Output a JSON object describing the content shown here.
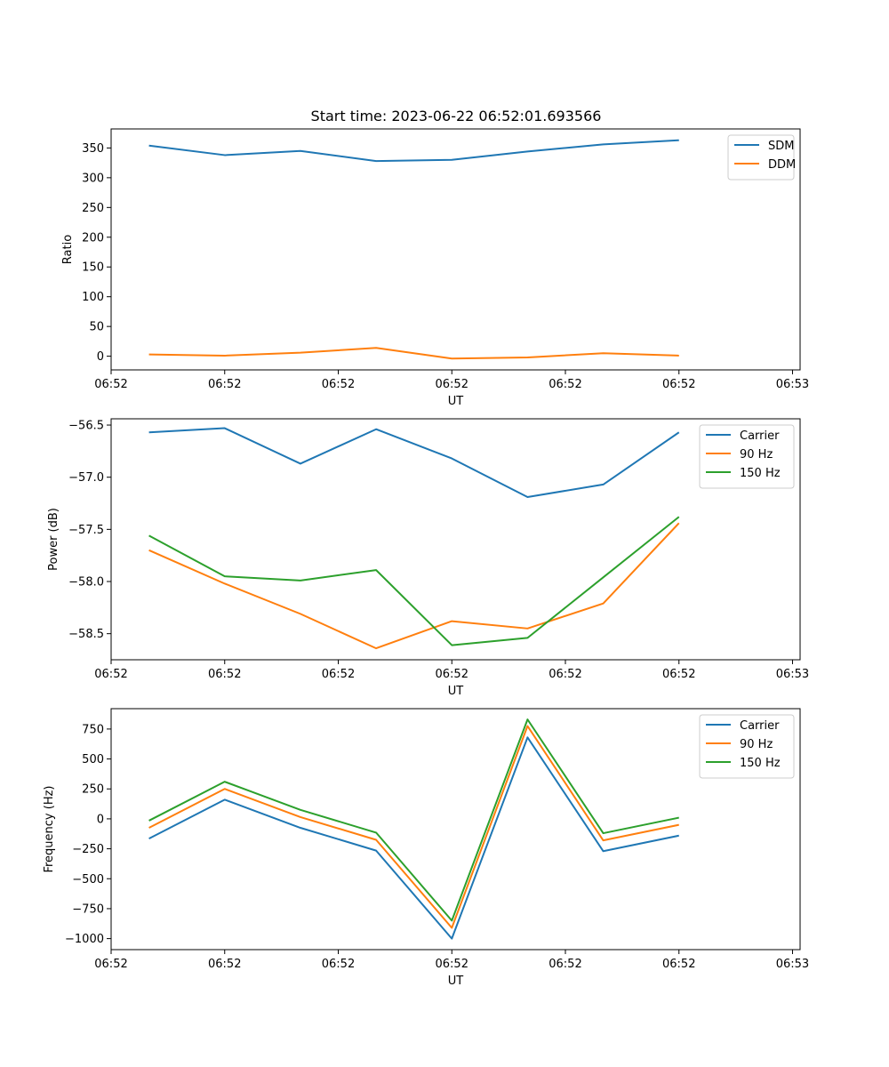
{
  "figure_title": "Start time: 2023-06-22 06:52:01.693566",
  "colors": {
    "blue": "#1f77b4",
    "orange": "#ff7f0e",
    "green": "#2ca02c"
  },
  "chart_data": [
    {
      "type": "line",
      "title": "Start time: 2023-06-22 06:52:01.693566",
      "xlabel": "UT",
      "ylabel": "Ratio",
      "xlim": [
        -0.5,
        8.6
      ],
      "ylim": [
        -23,
        382
      ],
      "xtick_positions": [
        -0.5,
        1,
        2.5,
        4,
        5.5,
        7,
        8.5
      ],
      "xtick_labels": [
        "06:52",
        "06:52",
        "06:52",
        "06:52",
        "06:52",
        "06:52",
        "06:53"
      ],
      "yticks": [
        0,
        50,
        100,
        150,
        200,
        250,
        300,
        350
      ],
      "ytick_labels": [
        "0",
        "50",
        "100",
        "150",
        "200",
        "250",
        "300",
        "350"
      ],
      "legend": "upper right",
      "x": [
        0,
        1,
        2,
        3,
        4,
        5,
        6,
        7
      ],
      "series": [
        {
          "name": "SDM",
          "color": "#1f77b4",
          "values": [
            354,
            338,
            345,
            328,
            330,
            344,
            356,
            363
          ]
        },
        {
          "name": "DDM",
          "color": "#ff7f0e",
          "values": [
            3,
            1,
            6,
            14,
            -4,
            -2,
            5,
            1
          ]
        }
      ]
    },
    {
      "type": "line",
      "xlabel": "UT",
      "ylabel": "Power (dB)",
      "xlim": [
        -0.5,
        8.6
      ],
      "ylim": [
        -58.75,
        -56.44
      ],
      "xtick_positions": [
        -0.5,
        1,
        2.5,
        4,
        5.5,
        7,
        8.5
      ],
      "xtick_labels": [
        "06:52",
        "06:52",
        "06:52",
        "06:52",
        "06:52",
        "06:52",
        "06:53"
      ],
      "yticks": [
        -58.5,
        -58.0,
        -57.5,
        -57.0,
        -56.5
      ],
      "ytick_labels": [
        "−58.5",
        "−58.0",
        "−57.5",
        "−57.0",
        "−56.5"
      ],
      "legend": "upper right",
      "x": [
        0,
        1,
        2,
        3,
        4,
        5,
        6,
        7
      ],
      "series": [
        {
          "name": "Carrier",
          "color": "#1f77b4",
          "values": [
            -56.57,
            -56.53,
            -56.87,
            -56.54,
            -56.82,
            -57.19,
            -57.07,
            -56.57
          ]
        },
        {
          "name": "90 Hz",
          "color": "#ff7f0e",
          "values": [
            -57.7,
            -58.02,
            -58.31,
            -58.64,
            -58.38,
            -58.45,
            -58.21,
            -57.44
          ]
        },
        {
          "name": "150 Hz",
          "color": "#2ca02c",
          "values": [
            -57.56,
            -57.95,
            -57.99,
            -57.89,
            -58.61,
            -58.54,
            -57.96,
            -57.38
          ]
        }
      ]
    },
    {
      "type": "line",
      "xlabel": "UT",
      "ylabel": "Frequency (Hz)",
      "xlim": [
        -0.5,
        8.6
      ],
      "ylim": [
        -1092,
        920
      ],
      "xtick_positions": [
        -0.5,
        1,
        2.5,
        4,
        5.5,
        7,
        8.5
      ],
      "xtick_labels": [
        "06:52",
        "06:52",
        "06:52",
        "06:52",
        "06:52",
        "06:52",
        "06:53"
      ],
      "yticks": [
        -1000,
        -750,
        -500,
        -250,
        0,
        250,
        500,
        750
      ],
      "ytick_labels": [
        "−1000",
        "−750",
        "−500",
        "−250",
        "0",
        "250",
        "500",
        "750"
      ],
      "legend": "upper right",
      "x": [
        0,
        1,
        2,
        3,
        4,
        5,
        6,
        7
      ],
      "series": [
        {
          "name": "Carrier",
          "color": "#1f77b4",
          "values": [
            -165,
            160,
            -75,
            -265,
            -1000,
            680,
            -270,
            -140
          ]
        },
        {
          "name": "90 Hz",
          "color": "#ff7f0e",
          "values": [
            -75,
            250,
            15,
            -175,
            -910,
            775,
            -180,
            -50
          ]
        },
        {
          "name": "150 Hz",
          "color": "#2ca02c",
          "values": [
            -15,
            310,
            75,
            -115,
            -850,
            830,
            -120,
            10
          ]
        }
      ]
    }
  ]
}
